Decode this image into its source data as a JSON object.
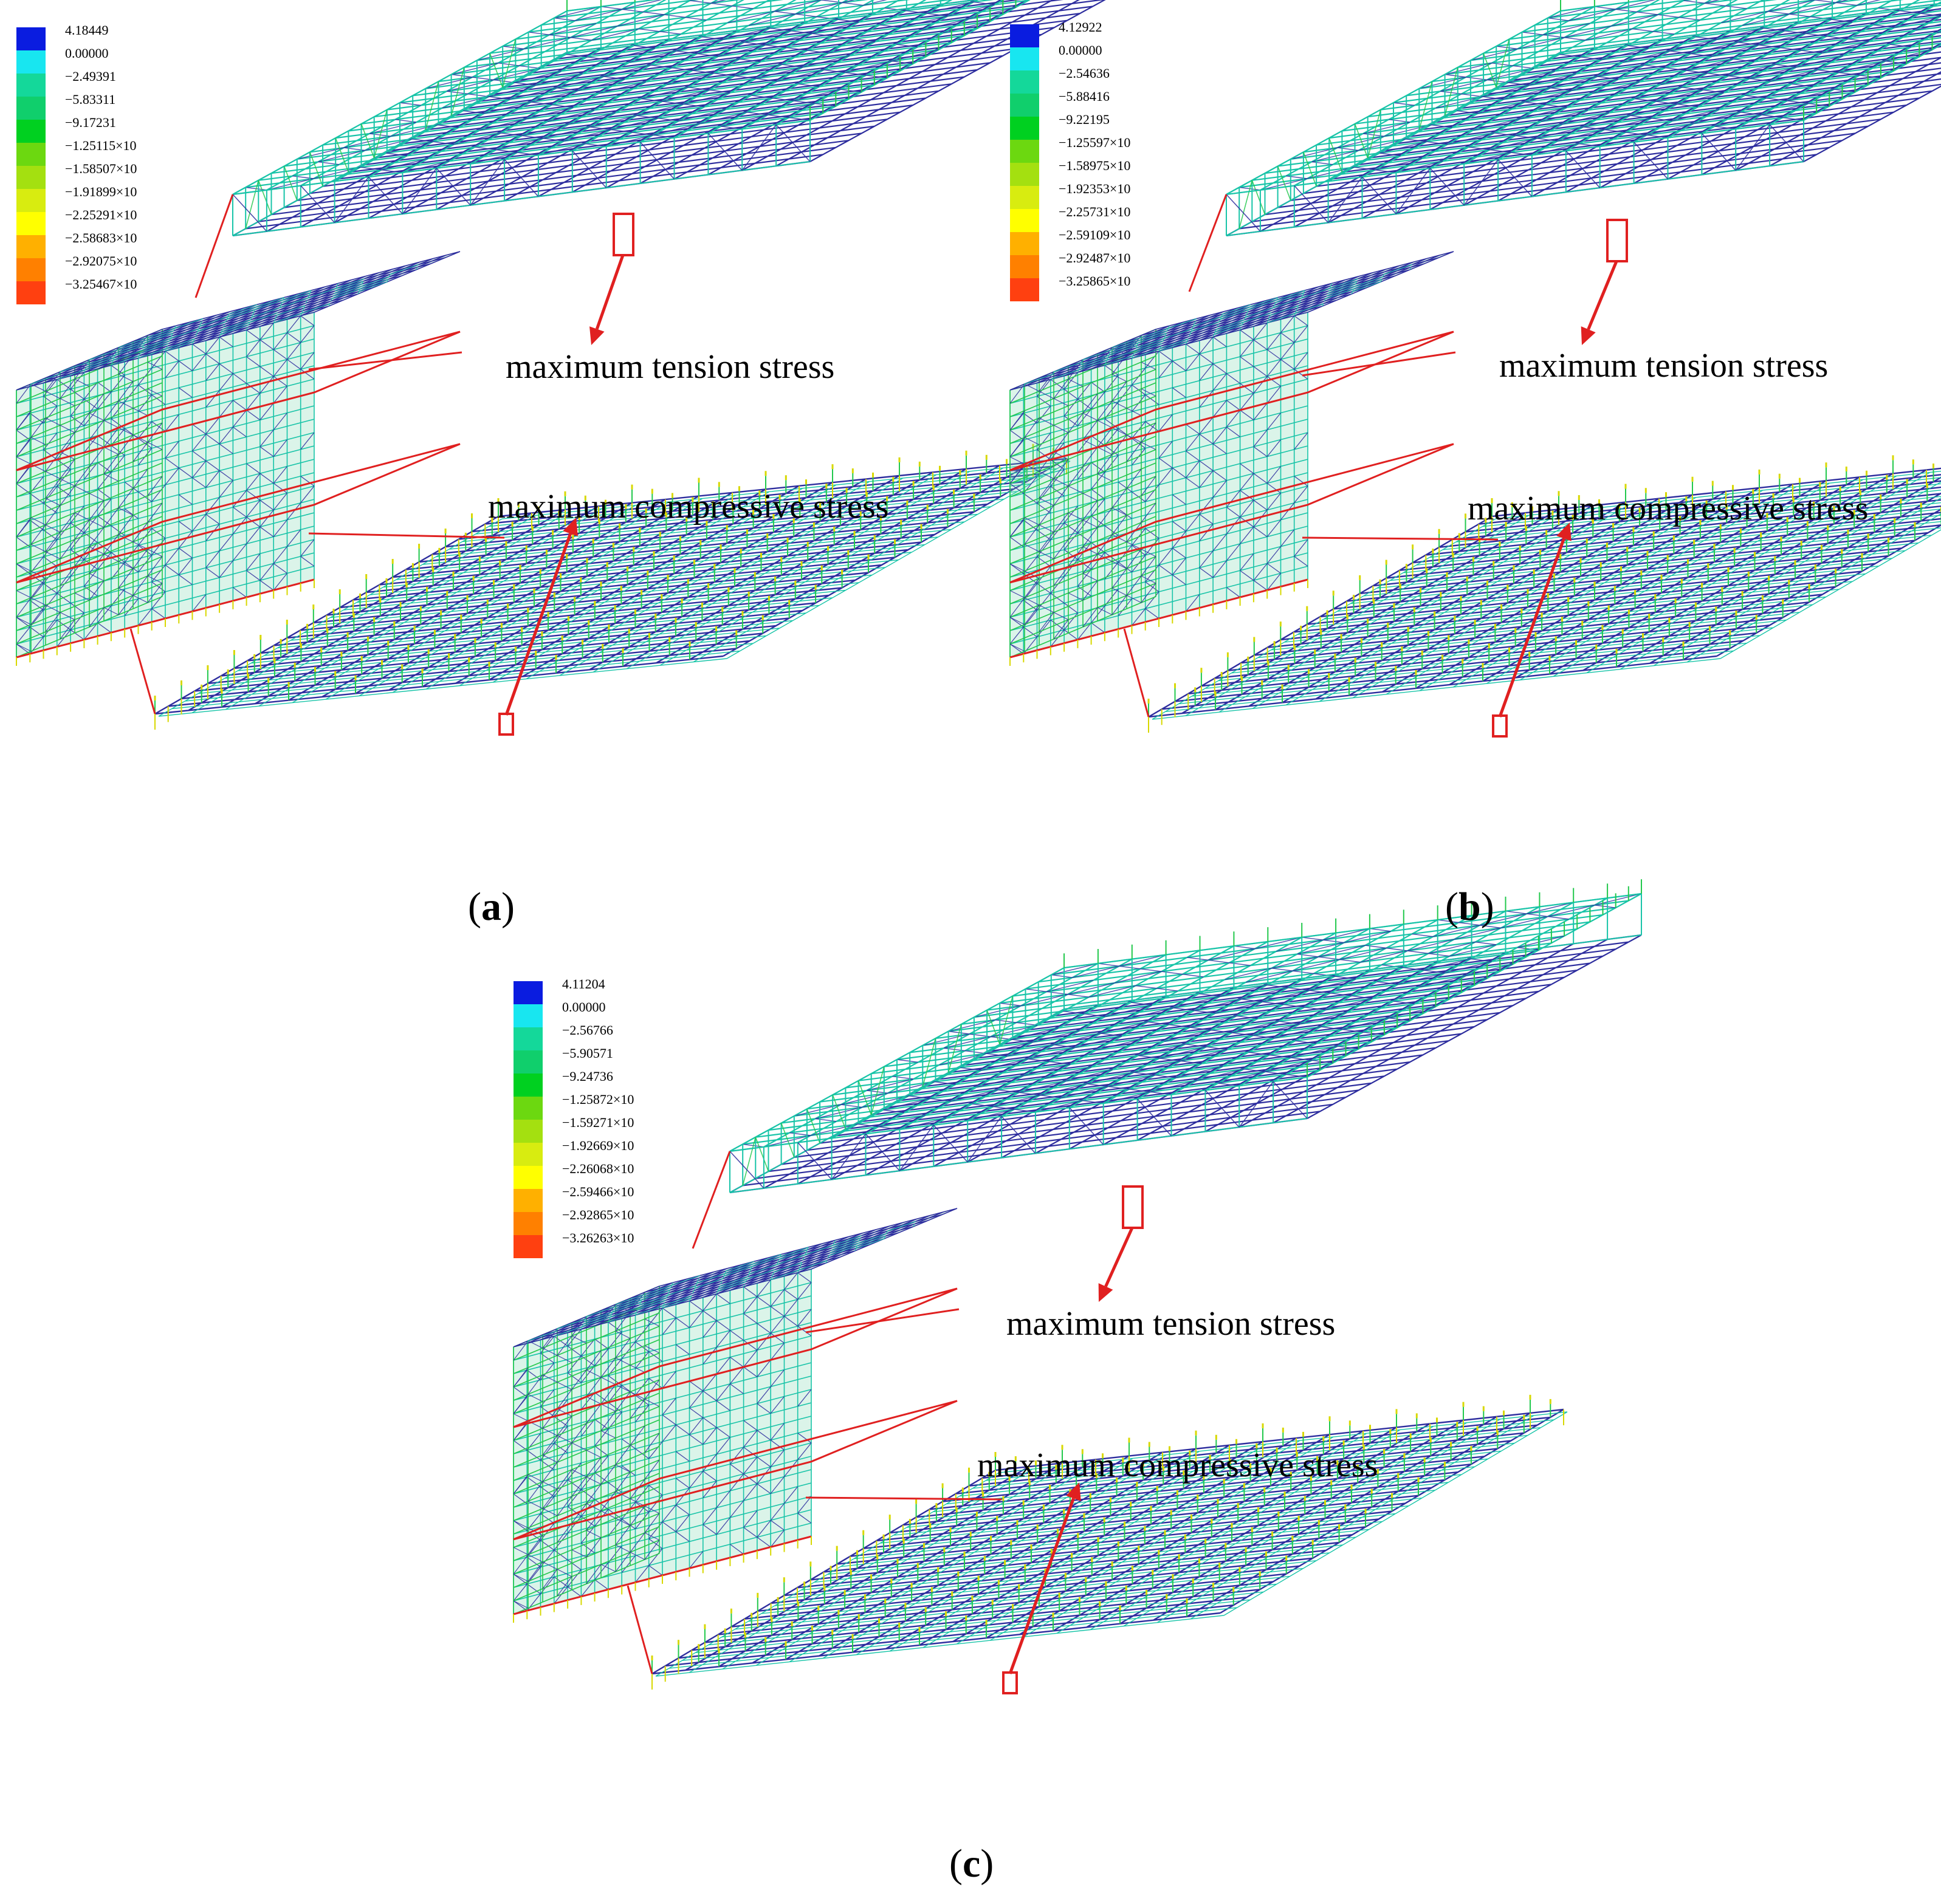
{
  "colors": {
    "member_blue": "#2d2d9e",
    "member_teal": "#18c4a8",
    "member_green": "#22c84c",
    "member_yellow": "#d8d800",
    "member_orange": "#ff9a00",
    "highlight_red": "#e02020"
  },
  "legend_colors": [
    "#0a1ce0",
    "#18e6f0",
    "#14d89a",
    "#10cf6c",
    "#00d020",
    "#6cd810",
    "#a4e010",
    "#d8ec10",
    "#ffff00",
    "#ffb000",
    "#ff8000",
    "#ff4010"
  ],
  "panels": [
    {
      "id": "a",
      "label": "a",
      "legend": [
        "4.18449",
        "0.00000",
        "−2.49391",
        "−5.83311",
        "−9.17231",
        "−1.25115×10",
        "−1.58507×10",
        "−1.91899×10",
        "−2.25291×10",
        "−2.58683×10",
        "−2.92075×10",
        "−3.25467×10"
      ],
      "tension_label": "maximum tension stress",
      "compressive_label": "maximum compressive stress"
    },
    {
      "id": "b",
      "label": "b",
      "legend": [
        "4.12922",
        "0.00000",
        "−2.54636",
        "−5.88416",
        "−9.22195",
        "−1.25597×10",
        "−1.58975×10",
        "−1.92353×10",
        "−2.25731×10",
        "−2.59109×10",
        "−2.92487×10",
        "−3.25865×10"
      ],
      "tension_label": "maximum tension stress",
      "compressive_label": "maximum compressive stress"
    },
    {
      "id": "c",
      "label": "c",
      "legend": [
        "4.11204",
        "0.00000",
        "−2.56766",
        "−5.90571",
        "−9.24736",
        "−1.25872×10",
        "−1.59271×10",
        "−1.92669×10",
        "−2.26068×10",
        "−2.59466×10",
        "−2.92865×10",
        "−3.26263×10"
      ],
      "tension_label": "maximum tension stress",
      "compressive_label": "maximum compressive stress"
    }
  ]
}
